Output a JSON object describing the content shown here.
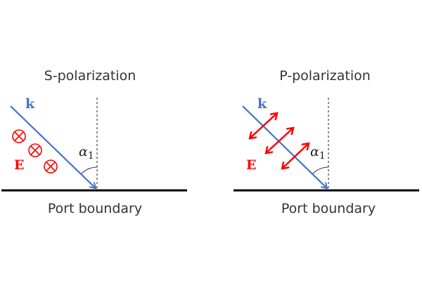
{
  "panels": [
    {
      "title": "S-polarization",
      "wave_label": "k",
      "field_label": "E",
      "angle_label": "α",
      "angle_subscript": "1",
      "boundary_label": "Port boundary",
      "field_symbol": "into-page-circle-x-icon"
    },
    {
      "title": "P-polarization",
      "wave_label": "k",
      "field_label": "E",
      "angle_label": "α",
      "angle_subscript": "1",
      "boundary_label": "Port boundary",
      "field_symbol": "double-headed-arrow-icon"
    }
  ],
  "colors": {
    "wave": "#4472c4",
    "field": "#ff0000",
    "boundary": "#000000"
  }
}
